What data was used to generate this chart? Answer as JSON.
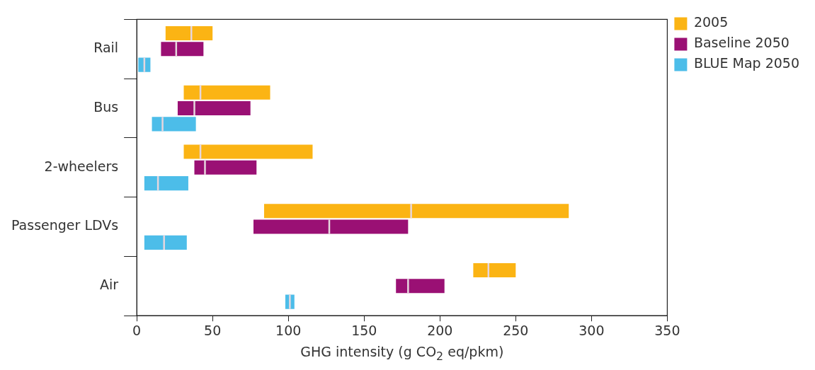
{
  "chart_data": {
    "type": "box",
    "orientation": "horizontal",
    "xlabel": "GHG intensity (g CO$_{2}$ eq/pkm)",
    "categories": [
      "Rail",
      "Bus",
      "2-wheelers",
      "Passenger LDVs",
      "Air"
    ],
    "xlim": [
      0,
      350
    ],
    "xticks": [
      0,
      50,
      100,
      150,
      200,
      250,
      300,
      350
    ],
    "legend": "right",
    "series": [
      {
        "name": "2005",
        "color": "#fbb414",
        "boxes": [
          {
            "low": 19,
            "q1": 19,
            "median": 36,
            "q3": 50,
            "high": 50
          },
          {
            "low": 31,
            "q1": 31,
            "median": 42,
            "q3": 88,
            "high": 88
          },
          {
            "low": 31,
            "q1": 31,
            "median": 42,
            "q3": 116,
            "high": 116
          },
          {
            "low": 84,
            "q1": 84,
            "median": 181,
            "q3": 285,
            "high": 285
          },
          {
            "low": 222,
            "q1": 222,
            "median": 232,
            "q3": 250,
            "high": 250
          }
        ]
      },
      {
        "name": "Baseline 2050",
        "color": "#9a1074",
        "boxes": [
          {
            "low": 16,
            "q1": 16,
            "median": 26,
            "q3": 44,
            "high": 44
          },
          {
            "low": 27,
            "q1": 27,
            "median": 38,
            "q3": 75,
            "high": 75
          },
          {
            "low": 38,
            "q1": 38,
            "median": 45,
            "q3": 79,
            "high": 79
          },
          {
            "low": 77,
            "q1": 77,
            "median": 127,
            "q3": 179,
            "high": 179
          },
          {
            "low": 171,
            "q1": 171,
            "median": 179,
            "q3": 203,
            "high": 203
          }
        ]
      },
      {
        "name": "BLUE Map 2050",
        "color": "#4cbde9",
        "boxes": [
          {
            "low": 1,
            "q1": 1,
            "median": 5,
            "q3": 9,
            "high": 9
          },
          {
            "low": 10,
            "q1": 10,
            "median": 17,
            "q3": 39,
            "high": 39
          },
          {
            "low": 5,
            "q1": 5,
            "median": 14,
            "q3": 34,
            "high": 34
          },
          {
            "low": 5,
            "q1": 5,
            "median": 18,
            "q3": 33,
            "high": 33
          },
          {
            "low": 98,
            "q1": 98,
            "median": 101,
            "q3": 104,
            "high": 104
          }
        ]
      }
    ]
  }
}
